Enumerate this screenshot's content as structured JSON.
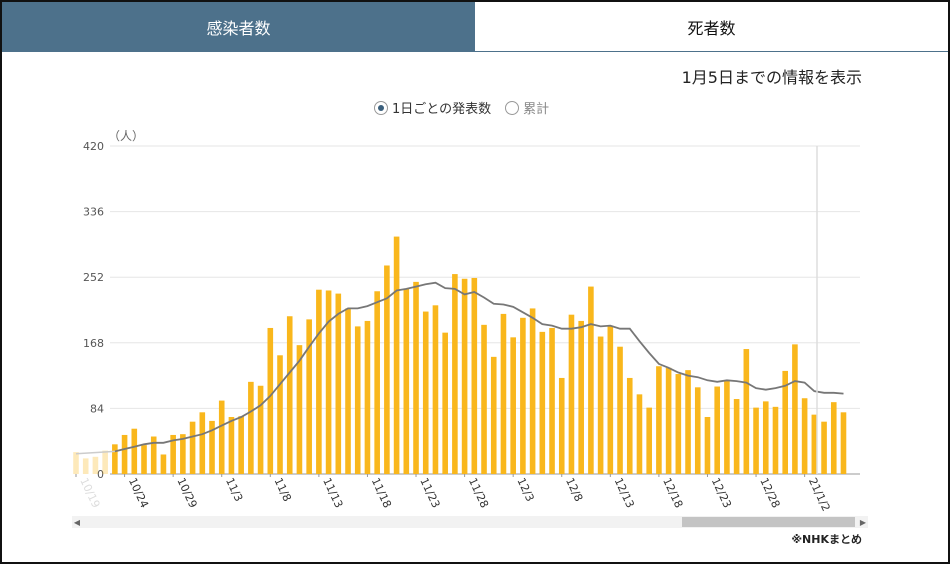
{
  "tabs": [
    {
      "label": "感染者数",
      "active": true
    },
    {
      "label": "死者数",
      "active": false
    }
  ],
  "info_text": "1月5日までの情報を表示",
  "radio_options": [
    {
      "label": "1日ごとの発表数",
      "selected": true
    },
    {
      "label": "累計",
      "selected": false
    }
  ],
  "source_note": "※NHKまとめ",
  "colors": {
    "tab_active": "#4d718b",
    "bar": "#f9b71c",
    "line": "#777777"
  },
  "chart_data": {
    "type": "bar",
    "ylabel": "（人）",
    "ylim": [
      0,
      420
    ],
    "yticks": [
      0,
      84,
      168,
      252,
      336,
      420
    ],
    "x_tick_labels": [
      "10/19",
      "10/24",
      "10/29",
      "11/3",
      "11/8",
      "11/13",
      "11/18",
      "11/23",
      "11/28",
      "12/3",
      "12/8",
      "12/13",
      "12/18",
      "12/23",
      "12/28",
      "21/1/2"
    ],
    "series": [
      {
        "type": "bar",
        "values": [
          28,
          20,
          22,
          30,
          38,
          50,
          58,
          37,
          48,
          25,
          50,
          51,
          67,
          79,
          68,
          94,
          73,
          74,
          118,
          113,
          187,
          152,
          202,
          165,
          198,
          236,
          235,
          231,
          212,
          189,
          196,
          234,
          267,
          304,
          237,
          246,
          208,
          216,
          181,
          256,
          250,
          251,
          191,
          150,
          205,
          175,
          200,
          212,
          182,
          187,
          123,
          204,
          196,
          240,
          176,
          190,
          163,
          123,
          102,
          85,
          138,
          136,
          128,
          133,
          111,
          73,
          112,
          120,
          96,
          160,
          85,
          93,
          86,
          132,
          166,
          97,
          76,
          67,
          92,
          79
        ]
      },
      {
        "type": "line",
        "values": [
          null,
          null,
          null,
          null,
          29,
          32,
          35,
          38,
          40,
          40,
          43,
          45,
          48,
          51,
          56,
          62,
          68,
          73,
          80,
          88,
          100,
          115,
          130,
          145,
          163,
          180,
          195,
          205,
          212,
          212,
          215,
          220,
          225,
          235,
          237,
          240,
          243,
          245,
          238,
          237,
          230,
          233,
          226,
          218,
          217,
          214,
          207,
          200,
          192,
          190,
          186,
          186,
          188,
          192,
          189,
          190,
          186,
          186,
          170,
          155,
          141,
          136,
          130,
          126,
          124,
          120,
          118,
          120,
          119,
          117,
          110,
          108,
          110,
          113,
          119,
          117,
          106,
          104,
          104,
          103
        ]
      }
    ]
  }
}
